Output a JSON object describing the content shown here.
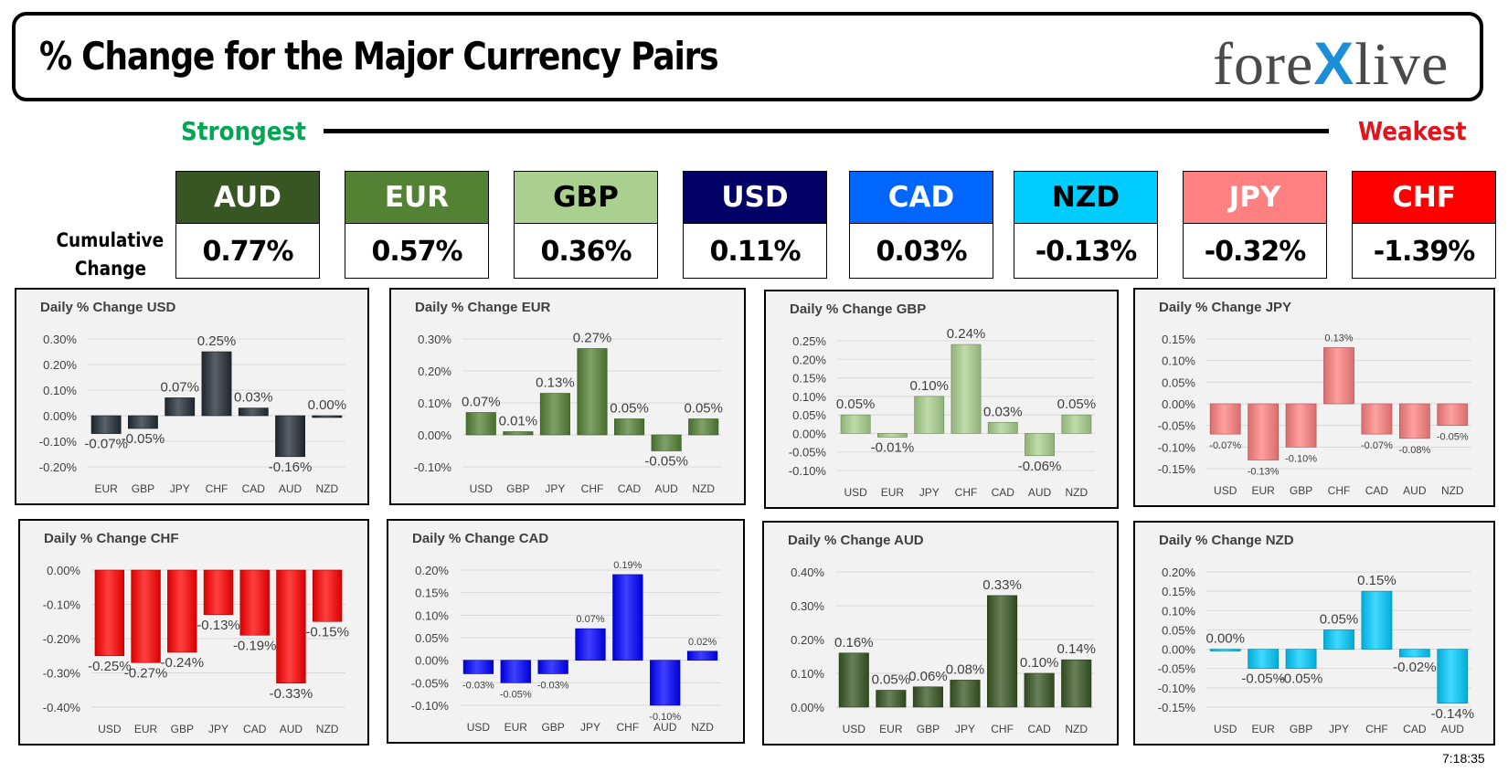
{
  "header": {
    "title": "% Change for the Major Currency Pairs",
    "logo_left": "fore",
    "logo_mid": "X",
    "logo_right": "live"
  },
  "scale": {
    "strongest": "Strongest",
    "weakest": "Weakest"
  },
  "cumulative_label_1": "Cumulative",
  "cumulative_label_2": "Change",
  "currencies": [
    {
      "code": "AUD",
      "value": "0.77%",
      "bg": "#375623",
      "fg": "#ffffff"
    },
    {
      "code": "EUR",
      "value": "0.57%",
      "bg": "#548235",
      "fg": "#ffffff"
    },
    {
      "code": "GBP",
      "value": "0.36%",
      "bg": "#a9d08e",
      "fg": "#000000"
    },
    {
      "code": "USD",
      "value": "0.11%",
      "bg": "#000066",
      "fg": "#ffffff"
    },
    {
      "code": "CAD",
      "value": "0.03%",
      "bg": "#0066ff",
      "fg": "#ffffff"
    },
    {
      "code": "NZD",
      "value": "-0.13%",
      "bg": "#00ccff",
      "fg": "#000000"
    },
    {
      "code": "JPY",
      "value": "-0.32%",
      "bg": "#ff8080",
      "fg": "#ffffff"
    },
    {
      "code": "CHF",
      "value": "-1.39%",
      "bg": "#ff0000",
      "fg": "#ffffff"
    }
  ],
  "timestamp": "7:18:35",
  "chart_data": [
    {
      "type": "bar",
      "title": "Daily % Change USD",
      "color": "#222b35",
      "categories": [
        "EUR",
        "GBP",
        "JPY",
        "CHF",
        "CAD",
        "AUD",
        "NZD"
      ],
      "values": [
        -0.07,
        -0.05,
        0.07,
        0.25,
        0.03,
        -0.16,
        0.0
      ],
      "labels": [
        "-0.07%",
        "-0.05%",
        "0.07%",
        "0.25%",
        "0.03%",
        "-0.16%",
        "0.00%"
      ],
      "yticks": [
        0.3,
        0.2,
        0.1,
        0.0,
        -0.1,
        -0.2
      ],
      "ytick_labels": [
        "0.30%",
        "0.20%",
        "0.10%",
        "0.00%",
        "-0.10%",
        "-0.20%"
      ],
      "label_size": 15
    },
    {
      "type": "bar",
      "title": "Daily % Change EUR",
      "color": "#548235",
      "categories": [
        "USD",
        "GBP",
        "JPY",
        "CHF",
        "CAD",
        "AUD",
        "NZD"
      ],
      "values": [
        0.07,
        0.01,
        0.13,
        0.27,
        0.05,
        -0.05,
        0.05
      ],
      "labels": [
        "0.07%",
        "0.01%",
        "0.13%",
        "0.27%",
        "0.05%",
        "-0.05%",
        "0.05%"
      ],
      "yticks": [
        0.3,
        0.2,
        0.1,
        0.0,
        -0.1
      ],
      "ytick_labels": [
        "0.30%",
        "0.20%",
        "0.10%",
        "0.00%",
        "-0.10%"
      ],
      "label_size": 15
    },
    {
      "type": "bar",
      "title": "Daily % Change GBP",
      "color": "#a9d08e",
      "categories": [
        "USD",
        "EUR",
        "JPY",
        "CHF",
        "CAD",
        "AUD",
        "NZD"
      ],
      "values": [
        0.05,
        -0.01,
        0.1,
        0.24,
        0.03,
        -0.06,
        0.05
      ],
      "labels": [
        "0.05%",
        "-0.01%",
        "0.10%",
        "0.24%",
        "0.03%",
        "-0.06%",
        "0.05%"
      ],
      "yticks": [
        0.25,
        0.2,
        0.15,
        0.1,
        0.05,
        0.0,
        -0.05,
        -0.1
      ],
      "ytick_labels": [
        "0.25%",
        "0.20%",
        "0.15%",
        "0.10%",
        "0.05%",
        "0.00%",
        "-0.05%",
        "-0.10%"
      ],
      "label_size": 15
    },
    {
      "type": "bar",
      "title": "Daily % Change JPY",
      "color": "#ff8080",
      "categories": [
        "USD",
        "EUR",
        "GBP",
        "CHF",
        "CAD",
        "AUD",
        "NZD"
      ],
      "values": [
        -0.07,
        -0.13,
        -0.1,
        0.13,
        -0.07,
        -0.08,
        -0.05
      ],
      "labels": [
        "-0.07%",
        "-0.13%",
        "-0.10%",
        "0.13%",
        "-0.07%",
        "-0.08%",
        "-0.05%"
      ],
      "yticks": [
        0.15,
        0.1,
        0.05,
        0.0,
        -0.05,
        -0.1,
        -0.15
      ],
      "ytick_labels": [
        "0.15%",
        "0.10%",
        "0.05%",
        "0.00%",
        "-0.05%",
        "-0.10%",
        "-0.15%"
      ],
      "label_size": 11
    },
    {
      "type": "bar",
      "title": "Daily % Change CHF",
      "color": "#ff0000",
      "categories": [
        "USD",
        "EUR",
        "GBP",
        "JPY",
        "CAD",
        "AUD",
        "NZD"
      ],
      "values": [
        -0.25,
        -0.27,
        -0.24,
        -0.13,
        -0.19,
        -0.33,
        -0.15
      ],
      "labels": [
        "-0.25%",
        "-0.27%",
        "-0.24%",
        "-0.13%",
        "-0.19%",
        "-0.33%",
        "-0.15%"
      ],
      "yticks": [
        0.0,
        -0.1,
        -0.2,
        -0.3,
        -0.4
      ],
      "ytick_labels": [
        "0.00%",
        "-0.10%",
        "-0.20%",
        "-0.30%",
        "-0.40%"
      ],
      "label_size": 15
    },
    {
      "type": "bar",
      "title": "Daily % Change CAD",
      "color": "#0000ff",
      "categories": [
        "USD",
        "EUR",
        "GBP",
        "JPY",
        "CHF",
        "AUD",
        "NZD"
      ],
      "values": [
        -0.03,
        -0.05,
        -0.03,
        0.07,
        0.19,
        -0.1,
        0.02
      ],
      "labels": [
        "-0.03%",
        "-0.05%",
        "-0.03%",
        "0.07%",
        "0.19%",
        "-0.10%",
        "0.02%"
      ],
      "yticks": [
        0.2,
        0.15,
        0.1,
        0.05,
        0.0,
        -0.05,
        -0.1
      ],
      "ytick_labels": [
        "0.20%",
        "0.15%",
        "0.10%",
        "0.05%",
        "0.00%",
        "-0.05%",
        "-0.10%"
      ],
      "label_size": 11
    },
    {
      "type": "bar",
      "title": "Daily % Change AUD",
      "color": "#375623",
      "categories": [
        "USD",
        "EUR",
        "GBP",
        "JPY",
        "CHF",
        "CAD",
        "NZD"
      ],
      "values": [
        0.16,
        0.05,
        0.06,
        0.08,
        0.33,
        0.1,
        0.14
      ],
      "labels": [
        "0.16%",
        "0.05%",
        "0.06%",
        "0.08%",
        "0.33%",
        "0.10%",
        "0.14%"
      ],
      "yticks": [
        0.4,
        0.3,
        0.2,
        0.1,
        0.0
      ],
      "ytick_labels": [
        "0.40%",
        "0.30%",
        "0.20%",
        "0.10%",
        "0.00%"
      ],
      "label_size": 15
    },
    {
      "type": "bar",
      "title": "Daily % Change NZD",
      "color": "#00ccff",
      "categories": [
        "USD",
        "EUR",
        "GBP",
        "JPY",
        "CHF",
        "CAD",
        "AUD"
      ],
      "values": [
        0.0,
        -0.05,
        -0.05,
        0.05,
        0.15,
        -0.02,
        -0.14
      ],
      "labels": [
        "0.00%",
        "-0.05%",
        "-0.05%",
        "0.05%",
        "0.15%",
        "-0.02%",
        "-0.14%"
      ],
      "yticks": [
        0.2,
        0.15,
        0.1,
        0.05,
        0.0,
        -0.05,
        -0.1,
        -0.15
      ],
      "ytick_labels": [
        "0.20%",
        "0.15%",
        "0.10%",
        "0.05%",
        "0.00%",
        "-0.05%",
        "-0.10%",
        "-0.15%"
      ],
      "label_size": 15
    }
  ]
}
